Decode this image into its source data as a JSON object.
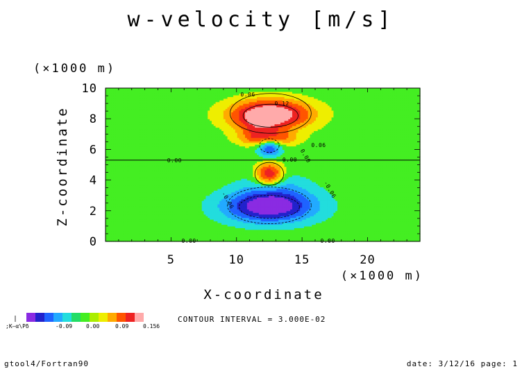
{
  "chart_data": {
    "type": "heatmap",
    "title": "w-velocity [m/s]",
    "xlabel": "X-coordinate",
    "ylabel": "Z-coordinate",
    "x_unit": "(×1000 m)",
    "y_unit": "(×1000 m)",
    "xlim": [
      0,
      24
    ],
    "ylim": [
      0,
      10
    ],
    "x_ticks": [
      "5",
      "10",
      "15",
      "20"
    ],
    "y_ticks": [
      "0",
      "2",
      "4",
      "6",
      "8",
      "10"
    ],
    "contour_interval": "CONTOUR INTERVAL = 3.000E-02",
    "contour_labels": [
      "0.06",
      "0.12",
      "0.06",
      "0.00",
      "0.00",
      "0.00",
      "-0.06",
      "-0.06",
      "0.00",
      "0.00"
    ],
    "features": [
      {
        "name": "upper positive core",
        "center": [
          12.6,
          8.2
        ],
        "peak": 0.156
      },
      {
        "name": "mid negative cell",
        "center": [
          12.5,
          6.2
        ],
        "value": -0.03
      },
      {
        "name": "mid positive cell",
        "center": [
          12.5,
          4.4
        ],
        "value": 0.12
      },
      {
        "name": "lower negative core",
        "center": [
          12.5,
          2.2
        ],
        "peak": -0.156
      }
    ],
    "colorbar": {
      "colors": [
        "#8a2be2",
        "#2222cc",
        "#1f63ff",
        "#22aaff",
        "#22dddd",
        "#22dd66",
        "#44ee22",
        "#aaee00",
        "#eeee00",
        "#ffaa00",
        "#ff5500",
        "#ee2222",
        "#ffaaaa"
      ],
      "labels": [
        ";K–α\\Pδ",
        "-0.09",
        "0.00",
        "0.09",
        "0.156"
      ]
    },
    "grid": false
  },
  "footer": {
    "left": "gtool4/Fortran90",
    "right": "date: 3/12/16 page: 1"
  }
}
